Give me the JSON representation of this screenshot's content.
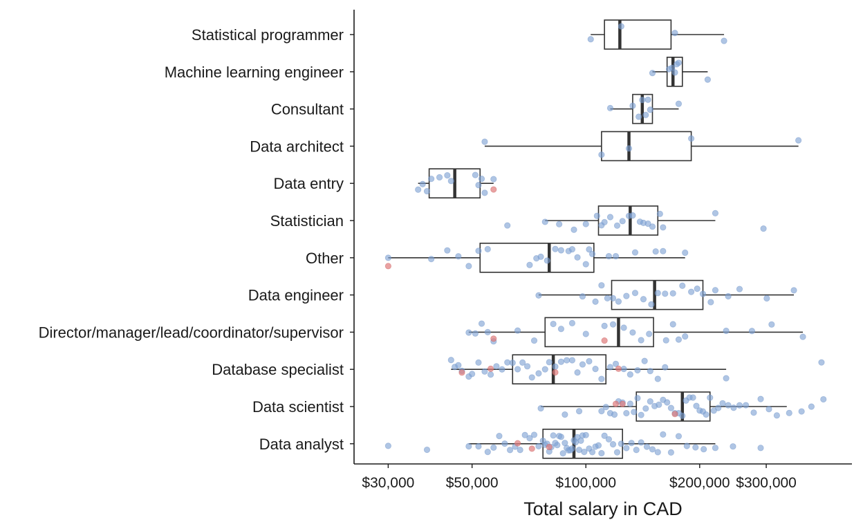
{
  "chart_data": {
    "type": "boxplot",
    "orientation": "horizontal",
    "title": "",
    "xlabel": "Total salary in CAD",
    "ylabel": "",
    "x_scale": "log",
    "xlim": [
      28000,
      440000
    ],
    "x_ticks": [
      {
        "value": 30000,
        "label": "$30,000"
      },
      {
        "value": 50000,
        "label": "$50,000"
      },
      {
        "value": 100000,
        "label": "$100,000"
      },
      {
        "value": 200000,
        "label": "$200,000"
      },
      {
        "value": 300000,
        "label": "$300,000"
      }
    ],
    "grid": false,
    "legend": "none",
    "colors": {
      "point_main": "#7ea2d4",
      "point_highlight": "#e07b7b",
      "box": "#333333"
    },
    "categories": [
      "Statistical programmer",
      "Machine learning engineer",
      "Consultant",
      "Data architect",
      "Data entry",
      "Statistician",
      "Other",
      "Data engineer",
      "Director/manager/lead/coordinator/supervisor",
      "Database specialist",
      "Data scientist",
      "Data analyst"
    ],
    "boxes": [
      {
        "category": "Statistical programmer",
        "min": 103000,
        "q1": 112000,
        "median": 123000,
        "q3": 168000,
        "max": 232000
      },
      {
        "category": "Machine learning engineer",
        "min": 150000,
        "q1": 164000,
        "median": 170000,
        "q3": 180000,
        "max": 210000
      },
      {
        "category": "Consultant",
        "min": 116000,
        "q1": 133000,
        "median": 141000,
        "q3": 150000,
        "max": 176000
      },
      {
        "category": "Data architect",
        "min": 54000,
        "q1": 110000,
        "median": 130000,
        "q3": 190000,
        "max": 365000
      },
      {
        "category": "Data entry",
        "min": 36000,
        "q1": 38500,
        "median": 45000,
        "q3": 52500,
        "max": 57000
      },
      {
        "category": "Statistician",
        "min": 78000,
        "q1": 108000,
        "median": 131000,
        "q3": 155000,
        "max": 220000
      },
      {
        "category": "Other",
        "min": 30000,
        "q1": 52500,
        "median": 80000,
        "q3": 105000,
        "max": 183000
      },
      {
        "category": "Data engineer",
        "min": 75000,
        "q1": 117000,
        "median": 152000,
        "q3": 204000,
        "max": 355000
      },
      {
        "category": "Director/manager/lead/coordinator/supervisor",
        "min": 49000,
        "q1": 78000,
        "median": 122000,
        "q3": 151000,
        "max": 375000
      },
      {
        "category": "Database specialist",
        "min": 44000,
        "q1": 64000,
        "median": 82000,
        "q3": 113000,
        "max": 235000
      },
      {
        "category": "Data scientist",
        "min": 76000,
        "q1": 136000,
        "median": 180000,
        "q3": 213000,
        "max": 340000
      },
      {
        "category": "Data analyst",
        "min": 49000,
        "q1": 77000,
        "median": 93000,
        "q3": 125000,
        "max": 220000
      }
    ],
    "points": [
      {
        "category": "Statistical programmer",
        "values": [
          103000,
          124000,
          172000,
          232000
        ]
      },
      {
        "category": "Machine learning engineer",
        "values": [
          150000,
          166000,
          169000,
          172000,
          174000,
          176000,
          210000
        ]
      },
      {
        "category": "Consultant",
        "values": [
          116000,
          133000,
          138000,
          141000,
          144000,
          146000,
          148000,
          176000
        ]
      },
      {
        "category": "Data architect",
        "values": [
          54000,
          110000,
          130000,
          190000,
          365000
        ]
      },
      {
        "category": "Data entry",
        "values": [
          36000,
          37000,
          38000,
          39000,
          41000,
          43000,
          44000,
          51000,
          52000,
          53000,
          54000,
          57000
        ]
      },
      {
        "category": "Statistician",
        "values": [
          62000,
          78000,
          85000,
          93000,
          100000,
          107000,
          110000,
          112000,
          116000,
          121000,
          125000,
          130000,
          133000,
          139000,
          142000,
          146000,
          150000,
          157000,
          160000,
          220000,
          295000
        ]
      },
      {
        "category": "Other",
        "values": [
          30000,
          39000,
          43000,
          46000,
          49000,
          52000,
          55000,
          71000,
          74000,
          76000,
          79000,
          83000,
          86000,
          90000,
          92000,
          95000,
          100000,
          102000,
          104000,
          115000,
          120000,
          135000,
          153000,
          160000,
          183000
        ]
      },
      {
        "category": "Data engineer",
        "values": [
          75000,
          98000,
          106000,
          110000,
          114000,
          118000,
          122000,
          128000,
          135000,
          142000,
          149000,
          155000,
          162000,
          170000,
          180000,
          190000,
          197000,
          204000,
          214000,
          220000,
          238000,
          255000,
          301000,
          355000
        ]
      },
      {
        "category": "Director/manager/lead/coordinator/supervisor",
        "values": [
          49000,
          51000,
          53000,
          55000,
          57000,
          66000,
          73000,
          82000,
          86000,
          92000,
          100000,
          112000,
          118000,
          126000,
          133000,
          140000,
          147000,
          163000,
          170000,
          176000,
          183000,
          235000,
          275000,
          310000,
          375000
        ]
      },
      {
        "category": "Database specialist",
        "values": [
          44000,
          45000,
          46000,
          47000,
          49000,
          50000,
          52000,
          54000,
          56000,
          58000,
          60000,
          62000,
          64000,
          66000,
          68000,
          70000,
          72000,
          75000,
          78000,
          80000,
          83000,
          86000,
          89000,
          92000,
          95000,
          98000,
          102000,
          106000,
          110000,
          116000,
          120000,
          126000,
          131000,
          137000,
          143000,
          148000,
          155000,
          162000,
          235000,
          420000
        ]
      },
      {
        "category": "Data scientist",
        "values": [
          76000,
          88000,
          96000,
          110000,
          113000,
          116000,
          119000,
          122000,
          125000,
          128000,
          131000,
          134000,
          137000,
          140000,
          144000,
          148000,
          152000,
          156000,
          160000,
          164000,
          168000,
          172000,
          176000,
          180000,
          184000,
          188000,
          192000,
          196000,
          200000,
          204000,
          208000,
          213000,
          218000,
          224000,
          230000,
          238000,
          246000,
          255000,
          265000,
          278000,
          290000,
          305000,
          320000,
          345000,
          372000,
          395000,
          425000
        ]
      },
      {
        "category": "Data analyst",
        "values": [
          30000,
          38000,
          49000,
          52000,
          55000,
          57000,
          59000,
          61000,
          63000,
          65000,
          67000,
          69000,
          71000,
          73000,
          75000,
          77000,
          78000,
          79000,
          80000,
          81000,
          82000,
          83000,
          84000,
          85000,
          86000,
          87000,
          88000,
          89000,
          90000,
          91000,
          92000,
          93000,
          94000,
          95000,
          96000,
          97000,
          98000,
          99000,
          100000,
          102000,
          104000,
          106000,
          108000,
          110000,
          112000,
          115000,
          118000,
          121000,
          124000,
          128000,
          132000,
          136000,
          140000,
          145000,
          150000,
          155000,
          160000,
          168000,
          176000,
          185000,
          195000,
          205000,
          220000,
          245000,
          290000
        ]
      }
    ],
    "highlighted_points": [
      {
        "category": "Data entry",
        "values": [
          57000
        ]
      },
      {
        "category": "Other",
        "values": [
          30000
        ]
      },
      {
        "category": "Director/manager/lead/coordinator/supervisor",
        "values": [
          57000,
          112000
        ]
      },
      {
        "category": "Database specialist",
        "values": [
          47000,
          56000,
          83000,
          122000
        ]
      },
      {
        "category": "Data scientist",
        "values": [
          120000,
          125000,
          172000
        ]
      },
      {
        "category": "Data analyst",
        "values": [
          66000,
          72000,
          80000
        ]
      }
    ]
  }
}
